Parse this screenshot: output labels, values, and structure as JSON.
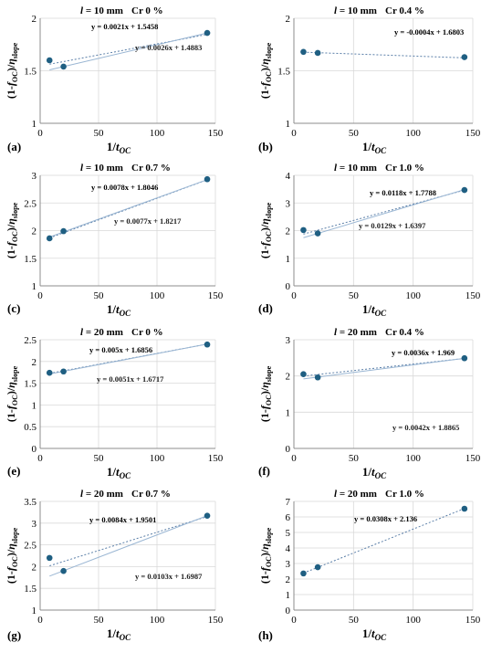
{
  "chart_data": [
    {
      "type": "scatter",
      "panel_label": "(a)",
      "title_l": "l = 10 mm",
      "title_cr": "Cr  0 %",
      "xlabel": "1/tOC",
      "ylabel": "(1-fOC)/ηslope",
      "xlim": [
        0,
        150
      ],
      "xticks": [
        "0",
        "50",
        "100",
        "150"
      ],
      "ylim": [
        1,
        2
      ],
      "yticks": [
        "1",
        "1.5",
        "2"
      ],
      "grid": true,
      "points": [
        [
          8,
          1.6
        ],
        [
          20,
          1.54
        ],
        [
          143,
          1.86
        ]
      ],
      "lines": [
        {
          "slope": 0.0021,
          "intercept": 1.5458,
          "label": "y = 0.0021x + 1.5458",
          "color": "#5b7fa8",
          "dash": "2 2"
        },
        {
          "slope": 0.0026,
          "intercept": 1.4883,
          "label": "y = 0.0026x + 1.4883",
          "color": "#9ab6d3",
          "dash": ""
        }
      ]
    },
    {
      "type": "scatter",
      "panel_label": "(b)",
      "title_l": "l = 10 mm",
      "title_cr": "Cr  0.4 %",
      "xlabel": "1/tOC",
      "ylabel": "(1-fOC)/ηslope",
      "xlim": [
        0,
        150
      ],
      "xticks": [
        "0",
        "50",
        "100",
        "150"
      ],
      "ylim": [
        1,
        2
      ],
      "yticks": [
        "1",
        "1.5",
        "2"
      ],
      "grid": true,
      "points": [
        [
          8,
          1.68
        ],
        [
          20,
          1.67
        ],
        [
          143,
          1.63
        ]
      ],
      "lines": [
        {
          "slope": -0.0004,
          "intercept": 1.6803,
          "label": "y = -0.0004x + 1.6803",
          "color": "#5b7fa8",
          "dash": "2 2"
        }
      ]
    },
    {
      "type": "scatter",
      "panel_label": "(c)",
      "title_l": "l = 10 mm",
      "title_cr": "Cr  0.7 %",
      "xlabel": "1/tOC",
      "ylabel": "(1-fOC)/ηslope",
      "xlim": [
        0,
        150
      ],
      "xticks": [
        "0",
        "50",
        "100",
        "150"
      ],
      "ylim": [
        1,
        3
      ],
      "yticks": [
        "1",
        "1.5",
        "2",
        "2.5",
        "3"
      ],
      "grid": true,
      "points": [
        [
          8,
          1.86
        ],
        [
          20,
          1.99
        ],
        [
          143,
          2.93
        ]
      ],
      "lines": [
        {
          "slope": 0.0078,
          "intercept": 1.8046,
          "label": "y = 0.0078x + 1.8046",
          "color": "#5b7fa8",
          "dash": "2 2"
        },
        {
          "slope": 0.0077,
          "intercept": 1.8217,
          "label": "y = 0.0077x + 1.8217",
          "color": "#9ab6d3",
          "dash": ""
        }
      ]
    },
    {
      "type": "scatter",
      "panel_label": "(d)",
      "title_l": "l = 10 mm",
      "title_cr": "Cr  1.0 %",
      "xlabel": "1/tOC",
      "ylabel": "(1-fOC)/ηslope",
      "xlim": [
        0,
        150
      ],
      "xticks": [
        "0",
        "50",
        "100",
        "150"
      ],
      "ylim": [
        0,
        4
      ],
      "yticks": [
        "0",
        "1",
        "2",
        "3",
        "4"
      ],
      "grid": true,
      "points": [
        [
          8,
          2.02
        ],
        [
          20,
          1.9
        ],
        [
          143,
          3.47
        ]
      ],
      "lines": [
        {
          "slope": 0.0118,
          "intercept": 1.7788,
          "label": "y = 0.0118x + 1.7788",
          "color": "#5b7fa8",
          "dash": "2 2"
        },
        {
          "slope": 0.0129,
          "intercept": 1.6397,
          "label": "y = 0.0129x + 1.6397",
          "color": "#9ab6d3",
          "dash": ""
        }
      ]
    },
    {
      "type": "scatter",
      "panel_label": "(e)",
      "title_l": "l = 20 mm",
      "title_cr": "Cr  0 %",
      "xlabel": "1/tOC",
      "ylabel": "(1-fOC)/ηslope",
      "xlim": [
        0,
        150
      ],
      "xticks": [
        "0",
        "50",
        "100",
        "150"
      ],
      "ylim": [
        0,
        2.5
      ],
      "yticks": [
        "0",
        "0.5",
        "1",
        "1.5",
        "2",
        "2.5"
      ],
      "grid": true,
      "points": [
        [
          8,
          1.74
        ],
        [
          20,
          1.77
        ],
        [
          143,
          2.39
        ]
      ],
      "lines": [
        {
          "slope": 0.005,
          "intercept": 1.6856,
          "label": "y = 0.005x + 1.6856",
          "color": "#5b7fa8",
          "dash": "2 2"
        },
        {
          "slope": 0.0051,
          "intercept": 1.6717,
          "label": "y = 0.0051x + 1.6717",
          "color": "#9ab6d3",
          "dash": ""
        }
      ]
    },
    {
      "type": "scatter",
      "panel_label": "(f)",
      "title_l": "l = 20 mm",
      "title_cr": "Cr  0.4 %",
      "xlabel": "1/tOC",
      "ylabel": "(1-fOC)/ηslope",
      "xlim": [
        0,
        150
      ],
      "xticks": [
        "0",
        "50",
        "100",
        "150"
      ],
      "ylim": [
        0,
        3
      ],
      "yticks": [
        "0",
        "1",
        "2",
        "3"
      ],
      "grid": true,
      "points": [
        [
          8,
          2.05
        ],
        [
          20,
          1.96
        ],
        [
          143,
          2.49
        ]
      ],
      "lines": [
        {
          "slope": 0.0036,
          "intercept": 1.969,
          "label": "y = 0.0036x + 1.969",
          "color": "#5b7fa8",
          "dash": "2 2"
        },
        {
          "slope": 0.0042,
          "intercept": 1.8865,
          "label": "y = 0.0042x + 1.8865",
          "color": "#9ab6d3",
          "dash": ""
        }
      ]
    },
    {
      "type": "scatter",
      "panel_label": "(g)",
      "title_l": "l = 20 mm",
      "title_cr": "Cr  0.7 %",
      "xlabel": "1/tOC",
      "ylabel": "(1-fOC)/ηslope",
      "xlim": [
        0,
        150
      ],
      "xticks": [
        "0",
        "50",
        "100",
        "150"
      ],
      "ylim": [
        1,
        3.5
      ],
      "yticks": [
        "1",
        "1.5",
        "2",
        "2.5",
        "3",
        "3.5"
      ],
      "grid": true,
      "points": [
        [
          8,
          2.2
        ],
        [
          20,
          1.9
        ],
        [
          143,
          3.17
        ]
      ],
      "lines": [
        {
          "slope": 0.0084,
          "intercept": 1.9501,
          "label": "y = 0.0084x + 1.9501",
          "color": "#5b7fa8",
          "dash": "2 2"
        },
        {
          "slope": 0.0103,
          "intercept": 1.6987,
          "label": "y = 0.0103x + 1.6987",
          "color": "#9ab6d3",
          "dash": ""
        }
      ]
    },
    {
      "type": "scatter",
      "panel_label": "(h)",
      "title_l": "l = 20 mm",
      "title_cr": "Cr  1.0 %",
      "xlabel": "1/tOC",
      "ylabel": "(1-fOC)/ηslope",
      "xlim": [
        0,
        150
      ],
      "xticks": [
        "0",
        "50",
        "100",
        "150"
      ],
      "ylim": [
        0,
        7
      ],
      "yticks": [
        "0",
        "1",
        "2",
        "3",
        "4",
        "5",
        "6",
        "7"
      ],
      "grid": true,
      "points": [
        [
          8,
          2.36
        ],
        [
          20,
          2.76
        ],
        [
          143,
          6.53
        ]
      ],
      "lines": [
        {
          "slope": 0.0308,
          "intercept": 2.136,
          "label": "y = 0.0308x + 2.136",
          "color": "#5b7fa8",
          "dash": "2 2"
        }
      ]
    }
  ],
  "colors": {
    "marker": "#1f5f82",
    "grid": "#d9d9d9",
    "axis": "#8c8c8c",
    "text": "#000000"
  }
}
